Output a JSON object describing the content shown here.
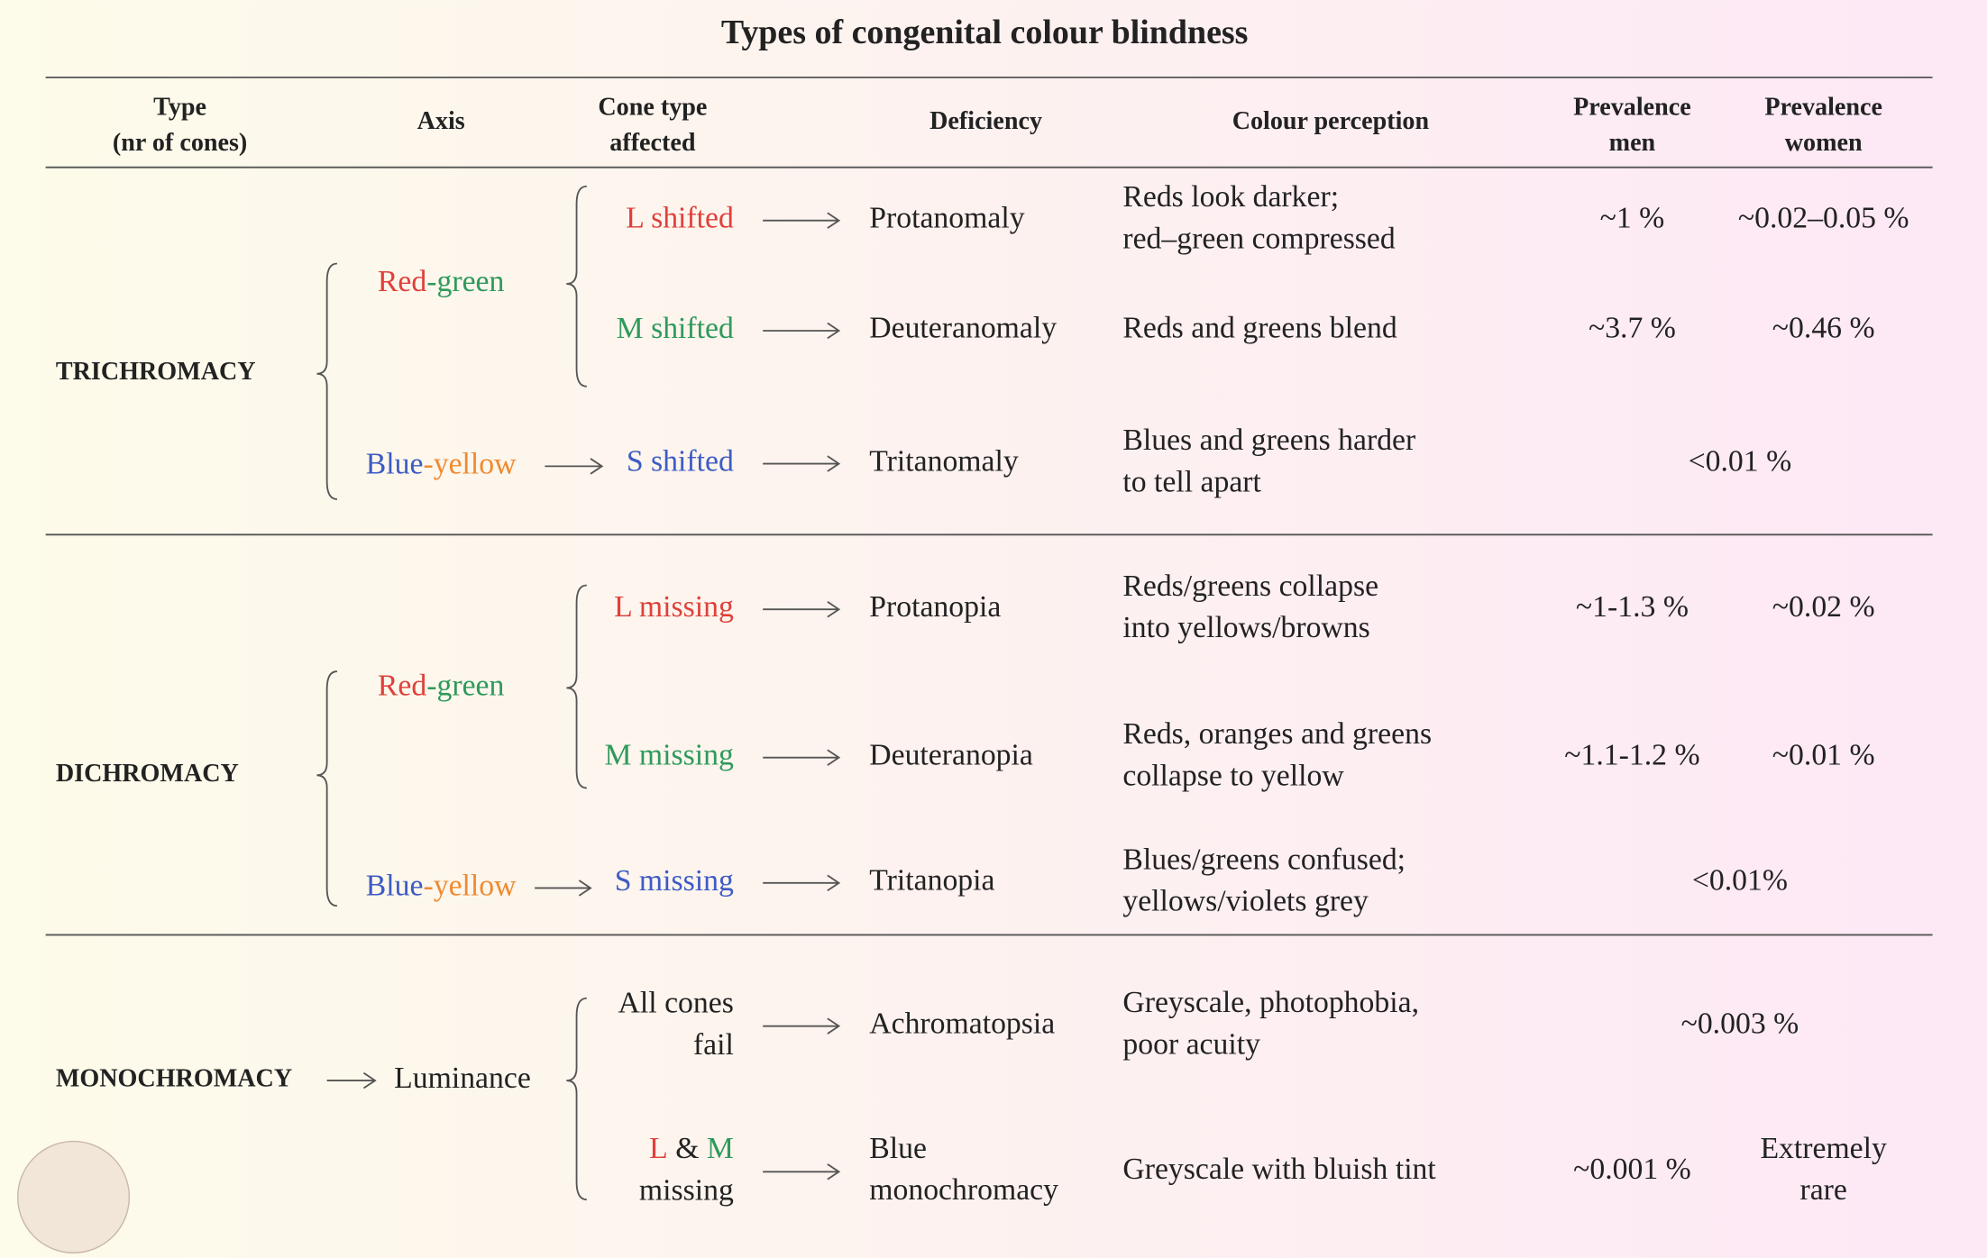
{
  "title": "Types of congenital colour blindness",
  "headers": [
    [
      "Type",
      "(nr of cones)"
    ],
    [
      "Axis"
    ],
    [
      "Cone type",
      "affected"
    ],
    [
      "Deficiency"
    ],
    [
      "Colour perception"
    ],
    [
      "Prevalence",
      "men"
    ],
    [
      "Prevalence",
      "women"
    ]
  ],
  "groups": [
    {
      "type": "TRICHROMACY",
      "axes": [
        [
          {
            "text": "Red",
            "color": "#e0403a"
          },
          {
            "text": "-green",
            "color": "#2e9a5a"
          }
        ],
        [
          {
            "text": "Blue",
            "color": "#3d5bc4"
          },
          {
            "text": "-yellow",
            "color": "#f08a30"
          }
        ]
      ],
      "rows": [
        {
          "cone": [
            [
              {
                "text": "L shifted",
                "color": "#e0403a"
              }
            ]
          ],
          "deficiency": [
            "Protanomaly"
          ],
          "perception": [
            "Reds look darker;",
            "red–green compressed"
          ],
          "men": [
            "~1 %"
          ],
          "women": [
            "~0.02–0.05 %"
          ]
        },
        {
          "cone": [
            [
              {
                "text": "M shifted",
                "color": "#2e9a5a"
              }
            ]
          ],
          "deficiency": [
            "Deuteranomaly"
          ],
          "perception": [
            "Reds and greens blend"
          ],
          "men": [
            "~3.7 %"
          ],
          "women": [
            "~0.46 %"
          ]
        },
        {
          "cone": [
            [
              {
                "text": "S shifted",
                "color": "#3d5bc4"
              }
            ]
          ],
          "deficiency": [
            "Tritanomaly"
          ],
          "perception": [
            "Blues and greens harder",
            "to tell apart"
          ],
          "prevalence": "<0.01 %"
        }
      ]
    },
    {
      "type": "DICHROMACY",
      "axes": [
        [
          {
            "text": "Red",
            "color": "#e0403a"
          },
          {
            "text": "-green",
            "color": "#2e9a5a"
          }
        ],
        [
          {
            "text": "Blue",
            "color": "#3d5bc4"
          },
          {
            "text": "-yellow",
            "color": "#f08a30"
          }
        ]
      ],
      "rows": [
        {
          "cone": [
            [
              {
                "text": "L missing",
                "color": "#e0403a"
              }
            ]
          ],
          "deficiency": [
            "Protanopia"
          ],
          "perception": [
            "Reds/greens collapse",
            "into yellows/browns"
          ],
          "men": [
            "~1-1.3 %"
          ],
          "women": [
            "~0.02 %"
          ]
        },
        {
          "cone": [
            [
              {
                "text": "M missing",
                "color": "#2e9a5a"
              }
            ]
          ],
          "deficiency": [
            "Deuteranopia"
          ],
          "perception": [
            "Reds, oranges and greens",
            "collapse to yellow"
          ],
          "men": [
            "~1.1-1.2 %"
          ],
          "women": [
            "~0.01 %"
          ]
        },
        {
          "cone": [
            [
              {
                "text": "S missing",
                "color": "#3d5bc4"
              }
            ]
          ],
          "deficiency": [
            "Tritanopia"
          ],
          "perception": [
            "Blues/greens confused;",
            "yellows/violets grey"
          ],
          "prevalence": "<0.01%"
        }
      ]
    },
    {
      "type": "MONOCHROMACY",
      "axes": [
        [
          {
            "text": "Luminance",
            "color": "#222222"
          }
        ]
      ],
      "rows": [
        {
          "cone": [
            [
              {
                "text": "All cones",
                "color": "#222222"
              }
            ],
            [
              {
                "text": "fail",
                "color": "#222222"
              }
            ]
          ],
          "deficiency": [
            "Achromatopsia"
          ],
          "perception": [
            "Greyscale, photophobia,",
            "poor acuity"
          ],
          "prevalence": "~0.003 %"
        },
        {
          "cone": [
            [
              {
                "text": "L",
                "color": "#e0403a"
              },
              {
                "text": " & ",
                "color": "#222222"
              },
              {
                "text": "M",
                "color": "#2e9a5a"
              }
            ],
            [
              {
                "text": "missing",
                "color": "#222222"
              }
            ]
          ],
          "deficiency": [
            "Blue",
            "monochromacy"
          ],
          "perception": [
            "Greyscale with bluish tint"
          ],
          "men": [
            "~0.001 %"
          ],
          "women": [
            "Extremely",
            "rare"
          ]
        }
      ]
    }
  ]
}
